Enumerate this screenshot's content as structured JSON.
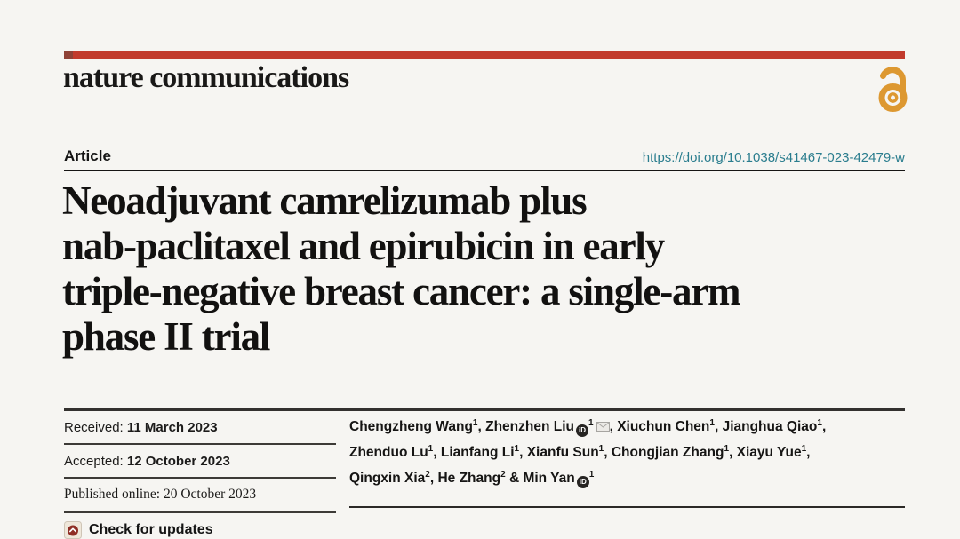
{
  "journal": {
    "wordmark": "nature communications",
    "accent_red": "#c23b2d",
    "open_access_color": "#dd9831"
  },
  "article": {
    "type_label": "Article",
    "doi": "https://doi.org/10.1038/s41467-023-42479-w",
    "doi_color": "#2a7d8e",
    "title_lines": [
      "Neoadjuvant camrelizumab plus",
      "nab-paclitaxel and epirubicin in early",
      "triple-negative breast cancer: a single-arm",
      "phase II trial"
    ]
  },
  "meta": {
    "received": {
      "label": "Received:",
      "date": "11 March 2023"
    },
    "accepted": {
      "label": "Accepted:",
      "date": "12 October 2023"
    },
    "published": {
      "label": "Published online:",
      "date": "20 October 2023"
    },
    "check_updates_label": "Check for updates"
  },
  "icons": {
    "open_access": "open-access-padlock",
    "orcid": "orcid-id-circle",
    "email": "envelope",
    "crossmark": "crossmark-check-badge"
  },
  "authors": {
    "orcid_label": "iD",
    "lines": [
      [
        {
          "name": "Chengzheng Wang",
          "sup": "1",
          "sep": ", "
        },
        {
          "name": "Zhenzhen Liu",
          "orcid": true,
          "sup": "1",
          "email": true,
          "sep": ", "
        },
        {
          "name": "Xiuchun Chen",
          "sup": "1",
          "sep": ", "
        },
        {
          "name": "Jianghua Qiao",
          "sup": "1",
          "sep": ","
        }
      ],
      [
        {
          "name": "Zhenduo Lu",
          "sup": "1",
          "sep": ", "
        },
        {
          "name": "Lianfang Li",
          "sup": "1",
          "sep": ", "
        },
        {
          "name": "Xianfu Sun",
          "sup": "1",
          "sep": ", "
        },
        {
          "name": "Chongjian Zhang",
          "sup": "1",
          "sep": ", "
        },
        {
          "name": "Xiayu Yue",
          "sup": "1",
          "sep": ","
        }
      ],
      [
        {
          "name": "Qingxin Xia",
          "sup": "2",
          "sep": ", "
        },
        {
          "name": "He Zhang",
          "sup": "2",
          "sep": " & "
        },
        {
          "name": "Min Yan",
          "orcid": true,
          "sup": "1",
          "sep": ""
        }
      ]
    ]
  }
}
